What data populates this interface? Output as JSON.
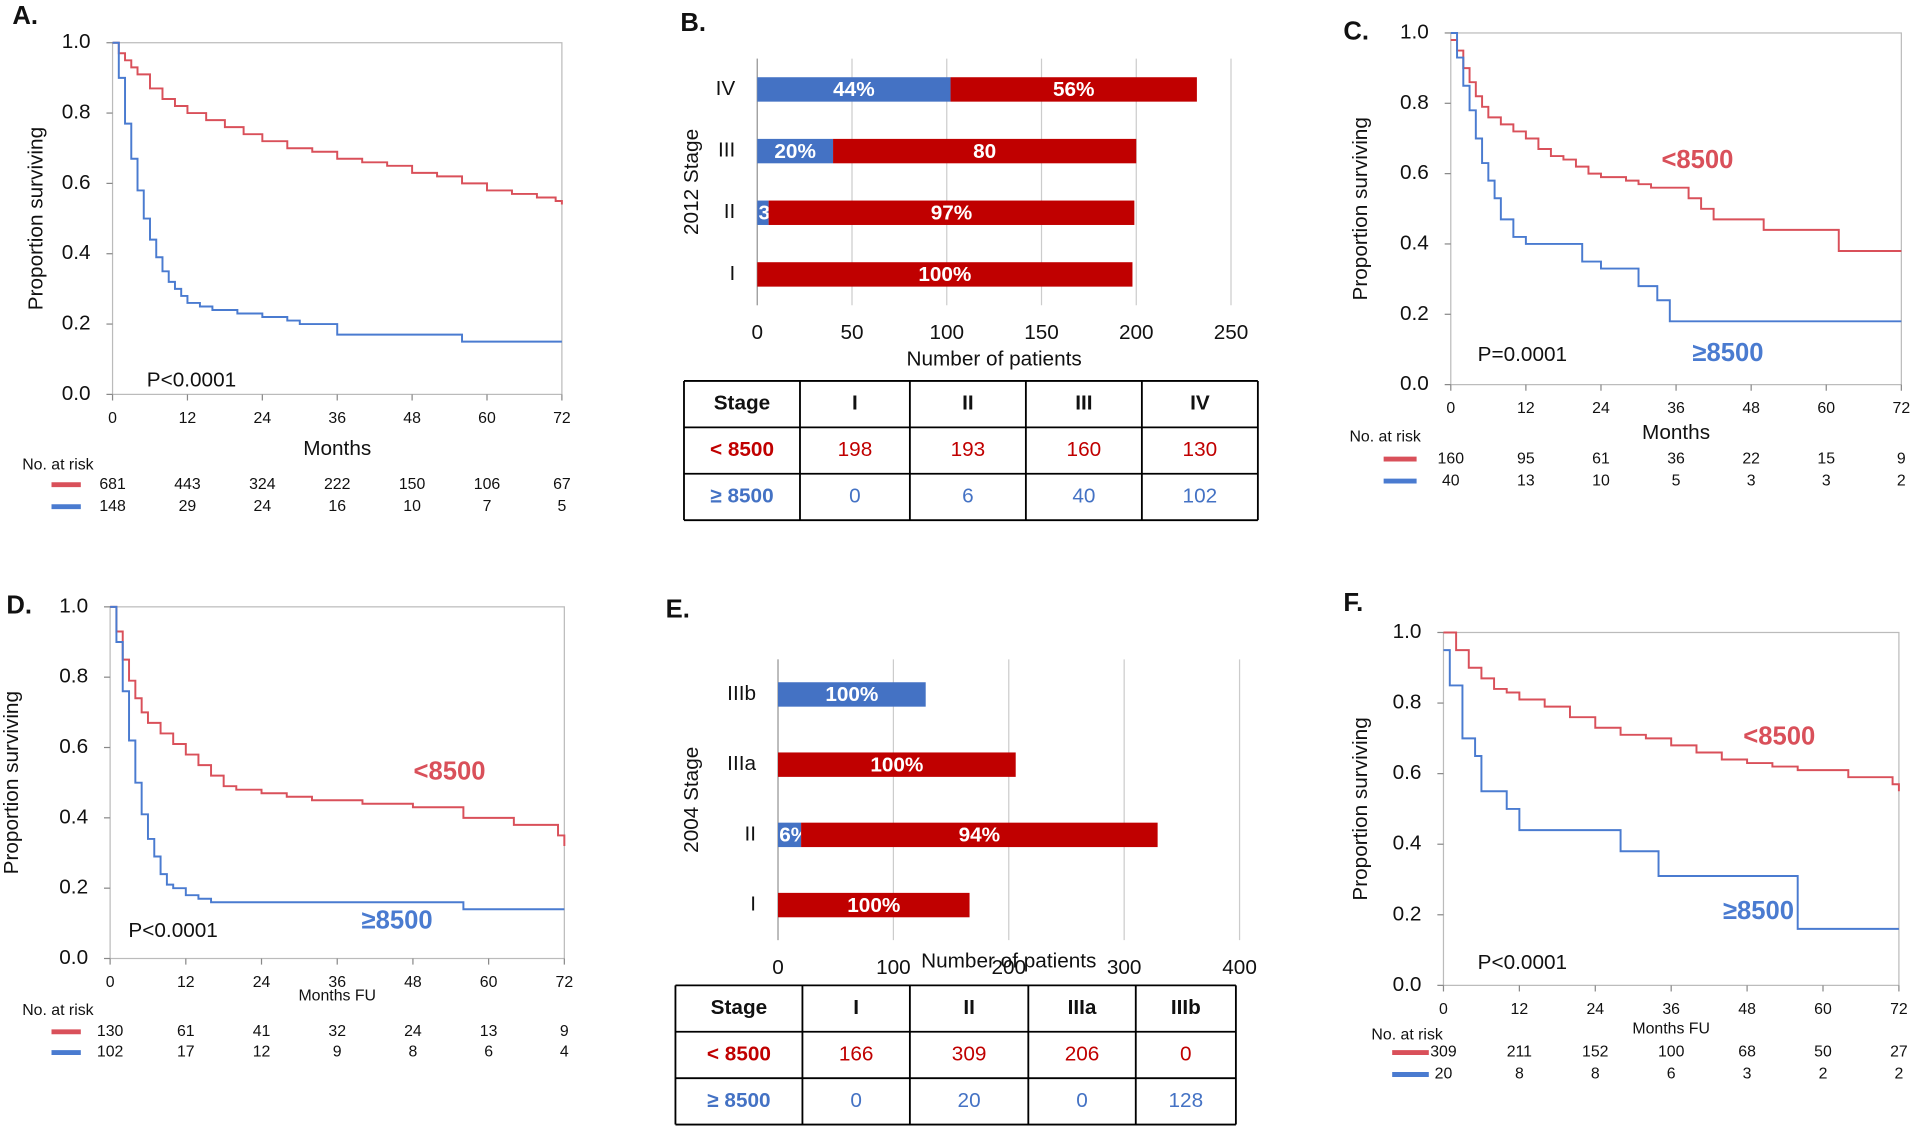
{
  "chart_data": [
    {
      "type": "line",
      "label": "A.",
      "ylabel": "Proportion surviving",
      "xlabel": "Months",
      "annotation": "P<0.0001",
      "xlim": [
        0,
        72
      ],
      "xticks": [
        0,
        12,
        24,
        36,
        48,
        60,
        72
      ],
      "ylim": [
        0,
        1
      ],
      "yticks": [
        {
          "value": 0,
          "label": "0.0"
        },
        0.2,
        0.4,
        0.6,
        0.8,
        {
          "value": 1,
          "label": "1.0"
        }
      ],
      "series": [
        {
          "color": "#d9505a",
          "x": [
            0,
            1,
            2,
            3,
            4,
            6,
            8,
            10,
            12,
            15,
            18,
            21,
            24,
            28,
            32,
            36,
            40,
            44,
            48,
            52,
            56,
            60,
            64,
            68,
            71,
            72
          ],
          "values": [
            1,
            0.97,
            0.95,
            0.93,
            0.91,
            0.87,
            0.84,
            0.82,
            0.8,
            0.78,
            0.76,
            0.74,
            0.72,
            0.7,
            0.69,
            0.67,
            0.66,
            0.65,
            0.63,
            0.62,
            0.6,
            0.58,
            0.57,
            0.56,
            0.55,
            0.54
          ]
        },
        {
          "color": "#4a7bd0",
          "x": [
            0,
            1,
            2,
            3,
            4,
            5,
            6,
            7,
            8,
            9,
            10,
            11,
            12,
            14,
            16,
            18,
            20,
            24,
            28,
            30,
            36,
            40,
            48,
            54,
            56,
            60,
            72
          ],
          "values": [
            1,
            0.9,
            0.77,
            0.67,
            0.58,
            0.5,
            0.44,
            0.39,
            0.35,
            0.32,
            0.3,
            0.28,
            0.26,
            0.25,
            0.24,
            0.24,
            0.23,
            0.22,
            0.21,
            0.2,
            0.17,
            0.17,
            0.17,
            0.17,
            0.15,
            0.15,
            0.15
          ]
        }
      ],
      "risk_table": {
        "title": "No. at risk",
        "rows": [
          [
            681,
            443,
            324,
            222,
            150,
            106,
            67
          ],
          [
            148,
            29,
            24,
            16,
            10,
            7,
            5
          ]
        ]
      }
    },
    {
      "type": "bar",
      "label": "B.",
      "ylabel": "2012 Stage",
      "xlabel": "Number of patients",
      "categories": [
        "IV",
        "III",
        "II",
        "I"
      ],
      "xlim": [
        0,
        250
      ],
      "xticks": [
        0,
        50,
        100,
        150,
        200,
        250
      ],
      "grid": true,
      "series": [
        {
          "color": "#4472c4",
          "values": [
            102,
            40,
            6,
            0
          ],
          "percent_labels": [
            "44%",
            "20%",
            "3%",
            null
          ]
        },
        {
          "color": "#c00000",
          "values": [
            130,
            160,
            193,
            198
          ],
          "percent_labels": [
            "56%",
            "80",
            "97%",
            "100%"
          ]
        }
      ],
      "table": {
        "header": [
          "Stage",
          "I",
          "II",
          "III",
          "IV"
        ],
        "row_colors": [
          "#c00000",
          "#4472c4"
        ],
        "rows": [
          [
            "< 8500",
            198,
            193,
            160,
            130
          ],
          [
            "≥ 8500",
            0,
            6,
            40,
            102
          ]
        ]
      }
    },
    {
      "type": "line",
      "label": "C.",
      "ylabel": "Proportion surviving",
      "xlabel": "Months",
      "annotation": "P=0.0001",
      "xlim": [
        0,
        72
      ],
      "xticks": [
        0,
        12,
        24,
        36,
        48,
        60,
        72
      ],
      "ylim": [
        0,
        1
      ],
      "yticks": [
        {
          "value": 0,
          "label": "0.0"
        },
        0.2,
        0.4,
        0.6,
        0.8,
        {
          "value": 1,
          "label": "1.0"
        }
      ],
      "series": [
        {
          "name": "<8500",
          "color": "#d9505a",
          "x": [
            0,
            1,
            2,
            3,
            4,
            5,
            6,
            8,
            10,
            12,
            14,
            16,
            18,
            20,
            22,
            24,
            28,
            30,
            32,
            36,
            38,
            40,
            42,
            46,
            50,
            52,
            56,
            62,
            64,
            72
          ],
          "values": [
            0.98,
            0.95,
            0.9,
            0.86,
            0.82,
            0.79,
            0.76,
            0.74,
            0.72,
            0.7,
            0.67,
            0.65,
            0.64,
            0.62,
            0.6,
            0.59,
            0.58,
            0.57,
            0.56,
            0.56,
            0.53,
            0.5,
            0.47,
            0.47,
            0.44,
            0.44,
            0.44,
            0.38,
            0.38,
            0.38
          ]
        },
        {
          "name": "≥8500",
          "color": "#4a7bd0",
          "x": [
            0,
            1,
            2,
            3,
            4,
            5,
            6,
            7,
            8,
            10,
            12,
            15,
            18,
            21,
            24,
            27,
            30,
            33,
            35,
            36,
            72
          ],
          "values": [
            1,
            0.93,
            0.85,
            0.78,
            0.7,
            0.63,
            0.58,
            0.53,
            0.47,
            0.42,
            0.4,
            0.4,
            0.4,
            0.35,
            0.33,
            0.33,
            0.28,
            0.24,
            0.18,
            0.18,
            0.18
          ]
        }
      ],
      "risk_table": {
        "title": "No. at risk",
        "rows": [
          [
            160,
            95,
            61,
            36,
            22,
            15,
            9
          ],
          [
            40,
            13,
            10,
            5,
            3,
            3,
            2
          ]
        ]
      }
    },
    {
      "type": "line",
      "label": "D.",
      "ylabel": "Proportion surviving",
      "xlabel": "Months FU",
      "annotation": "P<0.0001",
      "xlim": [
        0,
        72
      ],
      "xticks": [
        0,
        12,
        24,
        36,
        48,
        60,
        72
      ],
      "ylim": [
        0,
        1
      ],
      "yticks": [
        {
          "value": 0,
          "label": "0.0"
        },
        0.2,
        0.4,
        0.6,
        0.8,
        {
          "value": 1,
          "label": "1.0"
        }
      ],
      "series": [
        {
          "name": "<8500",
          "color": "#d9505a",
          "x": [
            0,
            1,
            2,
            3,
            4,
            5,
            6,
            8,
            10,
            12,
            14,
            16,
            18,
            20,
            24,
            28,
            32,
            36,
            40,
            44,
            48,
            52,
            56,
            60,
            64,
            68,
            70,
            71,
            72
          ],
          "values": [
            1,
            0.93,
            0.85,
            0.79,
            0.74,
            0.7,
            0.67,
            0.64,
            0.61,
            0.58,
            0.55,
            0.52,
            0.49,
            0.48,
            0.47,
            0.46,
            0.45,
            0.45,
            0.44,
            0.44,
            0.43,
            0.43,
            0.4,
            0.4,
            0.38,
            0.38,
            0.38,
            0.35,
            0.32
          ]
        },
        {
          "name": "≥8500",
          "color": "#4a7bd0",
          "x": [
            0,
            1,
            2,
            3,
            4,
            5,
            6,
            7,
            8,
            9,
            10,
            12,
            14,
            16,
            18,
            24,
            36,
            48,
            56,
            60,
            72
          ],
          "values": [
            1,
            0.9,
            0.76,
            0.62,
            0.5,
            0.41,
            0.34,
            0.29,
            0.24,
            0.21,
            0.2,
            0.18,
            0.17,
            0.16,
            0.16,
            0.16,
            0.16,
            0.16,
            0.14,
            0.14,
            0.14
          ]
        }
      ],
      "risk_table": {
        "title": "No. at risk",
        "rows": [
          [
            130,
            61,
            41,
            32,
            24,
            13,
            9
          ],
          [
            102,
            17,
            12,
            9,
            8,
            6,
            4
          ]
        ]
      }
    },
    {
      "type": "bar",
      "label": "E.",
      "ylabel": "2004 Stage",
      "xlabel": "Number of patients",
      "categories": [
        "IIIb",
        "IIIa",
        "II",
        "I"
      ],
      "xlim": [
        0,
        400
      ],
      "xticks": [
        0,
        100,
        200,
        300,
        400
      ],
      "grid": true,
      "series": [
        {
          "color": "#4472c4",
          "values": [
            128,
            0,
            20,
            0
          ],
          "percent_labels": [
            "100%",
            null,
            "6%",
            null
          ]
        },
        {
          "color": "#c00000",
          "values": [
            0,
            206,
            309,
            166
          ],
          "percent_labels": [
            null,
            "100%",
            "94%",
            "100%"
          ]
        }
      ],
      "table": {
        "header": [
          "Stage",
          "I",
          "II",
          "IIIa",
          "IIIb"
        ],
        "row_colors": [
          "#c00000",
          "#4472c4"
        ],
        "rows": [
          [
            "< 8500",
            166,
            309,
            206,
            0
          ],
          [
            "≥ 8500",
            0,
            20,
            0,
            128
          ]
        ]
      }
    },
    {
      "type": "line",
      "label": "F.",
      "ylabel": "Proportion surviving",
      "xlabel": "Months FU",
      "annotation": "P<0.0001",
      "xlim": [
        0,
        72
      ],
      "xticks": [
        0,
        12,
        24,
        36,
        48,
        60,
        72
      ],
      "ylim": [
        0,
        1
      ],
      "yticks": [
        {
          "value": 0,
          "label": "0.0"
        },
        0.2,
        0.4,
        0.6,
        0.8,
        {
          "value": 1,
          "label": "1.0"
        }
      ],
      "series": [
        {
          "name": "<8500",
          "color": "#d9505a",
          "x": [
            0,
            2,
            4,
            6,
            8,
            10,
            12,
            16,
            20,
            24,
            28,
            32,
            36,
            40,
            44,
            48,
            52,
            56,
            60,
            64,
            68,
            71,
            72
          ],
          "values": [
            1,
            0.95,
            0.9,
            0.87,
            0.84,
            0.83,
            0.81,
            0.79,
            0.76,
            0.73,
            0.71,
            0.7,
            0.68,
            0.66,
            0.64,
            0.63,
            0.62,
            0.61,
            0.61,
            0.59,
            0.59,
            0.57,
            0.55
          ]
        },
        {
          "name": "≥8500",
          "color": "#4a7bd0",
          "x": [
            0,
            1,
            2,
            3,
            4,
            5,
            6,
            8,
            10,
            12,
            15,
            18,
            21,
            24,
            28,
            30,
            32,
            34,
            36,
            40,
            48,
            54,
            56,
            60,
            72
          ],
          "values": [
            0.95,
            0.85,
            0.85,
            0.7,
            0.7,
            0.65,
            0.55,
            0.55,
            0.5,
            0.44,
            0.44,
            0.44,
            0.44,
            0.44,
            0.38,
            0.38,
            0.38,
            0.31,
            0.31,
            0.31,
            0.31,
            0.31,
            0.16,
            0.16,
            0.16
          ]
        }
      ],
      "risk_table": {
        "title": "No. at risk",
        "rows": [
          [
            309,
            211,
            152,
            100,
            68,
            50,
            27
          ],
          [
            20,
            8,
            8,
            6,
            3,
            2,
            2
          ]
        ]
      }
    }
  ]
}
